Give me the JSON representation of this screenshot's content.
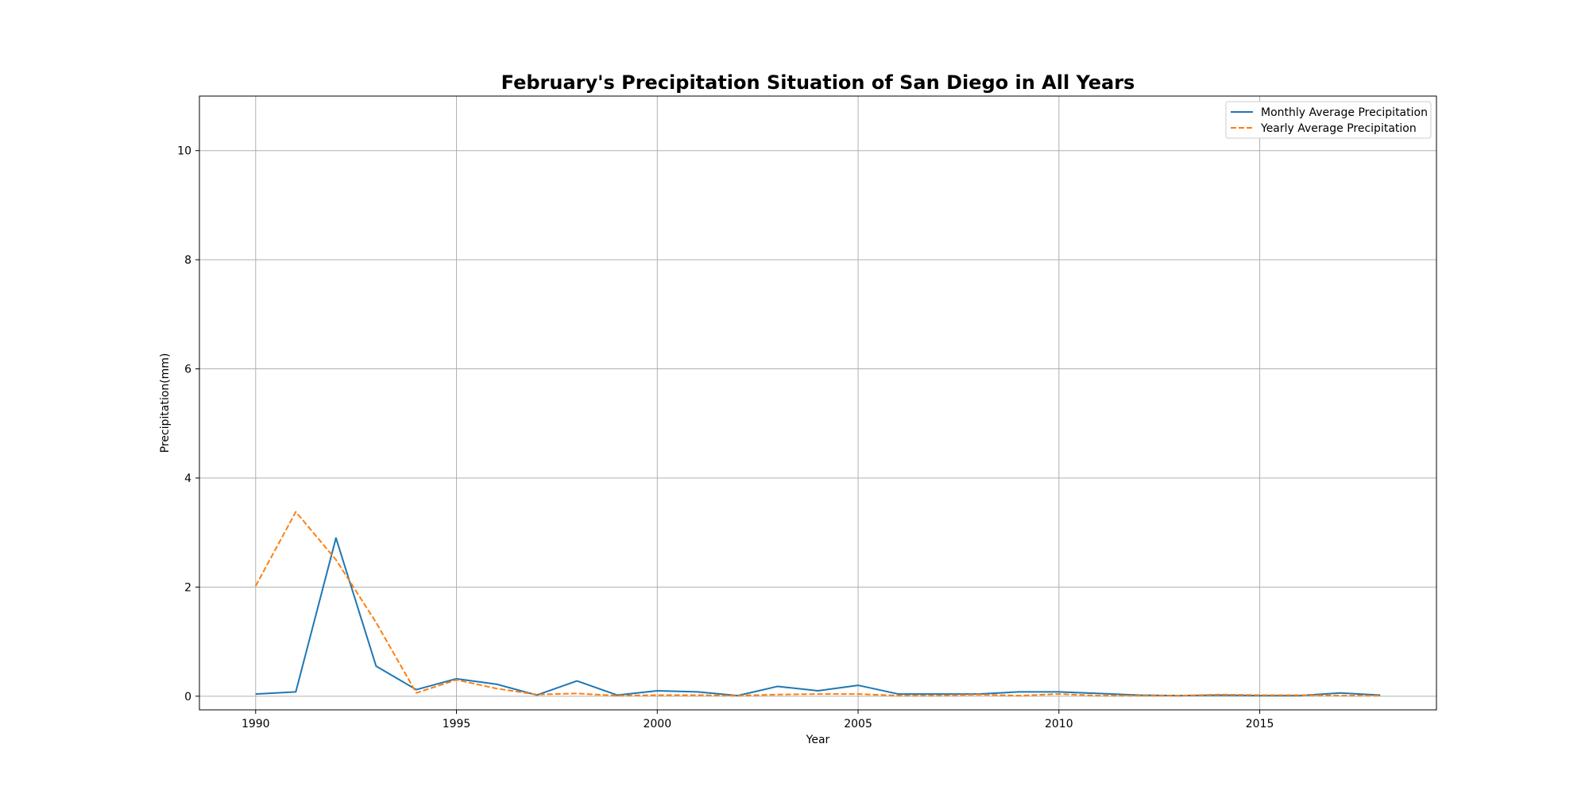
{
  "chart_data": {
    "type": "line",
    "title": "February's Precipitation Situation of San Diego in All Years",
    "xlabel": "Year",
    "ylabel": "Precipitation(mm)",
    "xlim": [
      1988.6,
      2019.4
    ],
    "ylim": [
      -0.25,
      11
    ],
    "xticks": [
      1990,
      1995,
      2000,
      2005,
      2010,
      2015
    ],
    "yticks": [
      0,
      2,
      4,
      6,
      8,
      10
    ],
    "grid": true,
    "legend_position": "top-right",
    "x": [
      1990,
      1991,
      1992,
      1993,
      1994,
      1995,
      1996,
      1997,
      1998,
      1999,
      2000,
      2001,
      2002,
      2003,
      2004,
      2005,
      2006,
      2007,
      2008,
      2009,
      2010,
      2011,
      2012,
      2013,
      2014,
      2015,
      2016,
      2017,
      2018
    ],
    "series": [
      {
        "name": "Monthly Average Precipitation",
        "color": "#1f77b4",
        "style": "solid",
        "values": [
          0.04,
          0.08,
          2.9,
          0.55,
          0.12,
          0.32,
          0.22,
          0.02,
          0.28,
          0.02,
          0.1,
          0.08,
          0.01,
          0.18,
          0.1,
          0.2,
          0.04,
          0.04,
          0.04,
          0.08,
          0.08,
          0.05,
          0.02,
          0.01,
          0.02,
          0.01,
          0.01,
          0.06,
          0.02
        ]
      },
      {
        "name": "Yearly Average Precipitation",
        "color": "#ff7f0e",
        "style": "dashed",
        "values": [
          2.02,
          3.38,
          2.5,
          1.35,
          0.06,
          0.3,
          0.14,
          0.03,
          0.05,
          0.01,
          0.02,
          0.02,
          0.01,
          0.03,
          0.04,
          0.04,
          0.01,
          0.01,
          0.03,
          0.01,
          0.04,
          0.01,
          0.01,
          0.01,
          0.03,
          0.02,
          0.02,
          0.01,
          0.01
        ]
      }
    ]
  }
}
